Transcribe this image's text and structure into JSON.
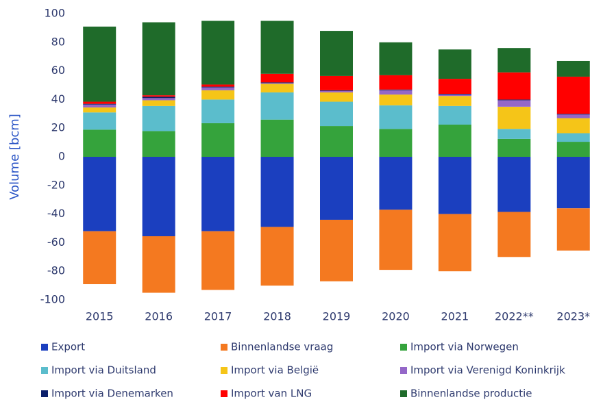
{
  "chart_data": {
    "type": "bar",
    "stacked": true,
    "y_label": "Volume [bcm]",
    "categories": [
      "2015",
      "2016",
      "2017",
      "2018",
      "2019",
      "2020",
      "2021",
      "2022**",
      "2023*"
    ],
    "ylim": [
      -100,
      100
    ],
    "yticks": [
      -100,
      -80,
      -60,
      -40,
      -20,
      0,
      20,
      40,
      60,
      80,
      100
    ],
    "grid": false,
    "series": [
      {
        "name": "Export",
        "color": "#1b3fbf",
        "values": [
          -52,
          -55.5,
          -52,
          -49,
          -44,
          -37,
          -40,
          -38.5,
          -36
        ]
      },
      {
        "name": "Binnenlandse vraag",
        "color": "#f47920",
        "values": [
          -37,
          -39.5,
          -41,
          -41,
          -43,
          -42,
          -40,
          -31.5,
          -29.5
        ]
      },
      {
        "name": "Import via Norwegen",
        "color": "#35a33c",
        "values": [
          19,
          18,
          23.5,
          26,
          21.5,
          19.5,
          22.5,
          12.5,
          10.5
        ]
      },
      {
        "name": "Import via Duitsland",
        "color": "#5bbdcc",
        "values": [
          12,
          17.5,
          16.5,
          19,
          17,
          16.5,
          13,
          7,
          6
        ]
      },
      {
        "name": "Import via België",
        "color": "#f5c518",
        "values": [
          3.5,
          4,
          6.5,
          6,
          6.5,
          7.5,
          7,
          15.5,
          10.5
        ]
      },
      {
        "name": "Import via Verenigd Koninkrijk",
        "color": "#9467c8",
        "values": [
          2,
          1.5,
          2,
          0.5,
          1,
          3,
          1,
          4.5,
          2.5
        ]
      },
      {
        "name": "Import via Denemarken",
        "color": "#0b1f6b",
        "values": [
          0.5,
          1,
          0.5,
          0.5,
          0.5,
          0.5,
          0.5,
          0.5,
          0.5
        ]
      },
      {
        "name": "Import van LNG",
        "color": "#ff0000",
        "values": [
          1.5,
          1,
          1.5,
          6,
          10,
          10,
          10.5,
          19,
          26
        ]
      },
      {
        "name": "Binnenlandse productie",
        "color": "#1f6b2a",
        "values": [
          52.5,
          51,
          44.5,
          37,
          31.5,
          23,
          20.5,
          17,
          11
        ]
      }
    ]
  }
}
